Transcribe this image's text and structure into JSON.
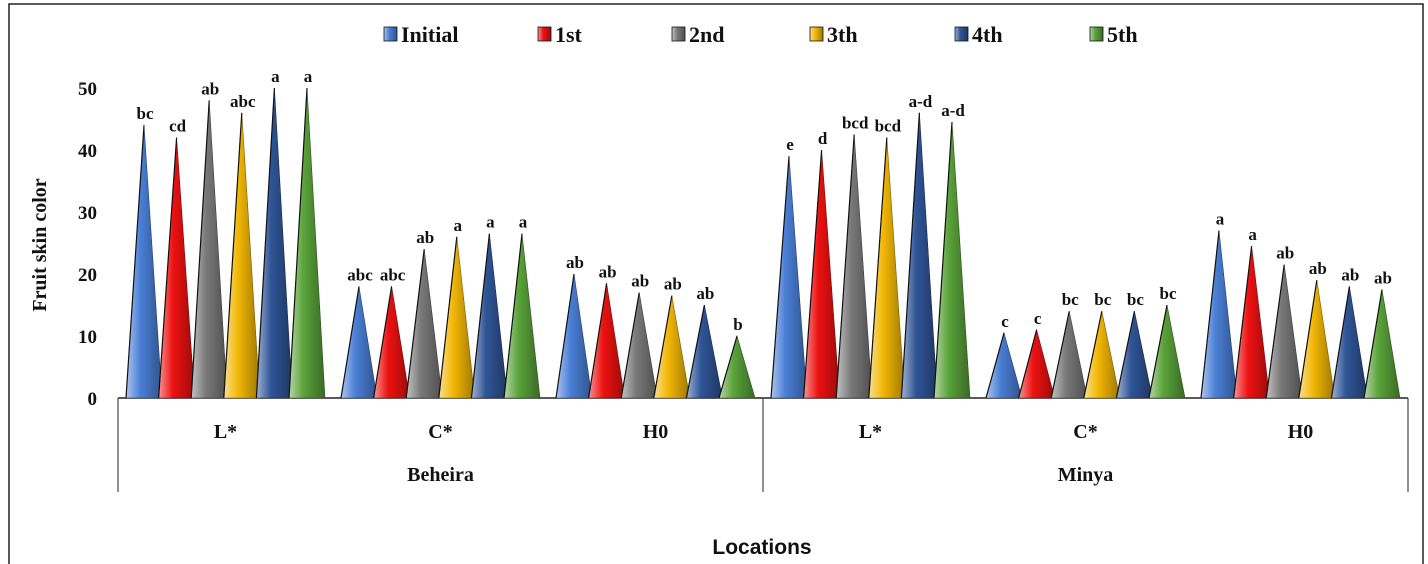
{
  "chart_data": {
    "type": "bar",
    "marker_shape": "cone",
    "ylabel": "Fruit skin color",
    "xlabel": "Locations",
    "ylim": [
      0,
      50
    ],
    "yticks": [
      0,
      10,
      20,
      30,
      40,
      50
    ],
    "legend_position": "top",
    "groups": [
      {
        "name": "Beheira",
        "categories": [
          "L*",
          "C*",
          "H0"
        ]
      },
      {
        "name": "Minya",
        "categories": [
          "L*",
          "C*",
          "H0"
        ]
      }
    ],
    "series": [
      {
        "name": "Initial",
        "color": "#4a7fd6",
        "values": [
          44,
          18,
          20,
          39,
          10.5,
          27
        ],
        "labels": [
          "bc",
          "abc",
          "ab",
          "e",
          "c",
          "a"
        ]
      },
      {
        "name": "1st",
        "color": "#ee1111",
        "values": [
          42,
          18,
          18.5,
          40,
          11,
          24.5
        ],
        "labels": [
          "cd",
          "abc",
          "ab",
          "d",
          "c",
          "a"
        ]
      },
      {
        "name": "2nd",
        "color": "#7a7a7a",
        "values": [
          48,
          24,
          17,
          42.5,
          14,
          21.5
        ],
        "labels": [
          "ab",
          "ab",
          "ab",
          "bcd",
          "bc",
          "ab"
        ]
      },
      {
        "name": "3th",
        "color": "#f2b705",
        "values": [
          46,
          26,
          16.5,
          42,
          14,
          19
        ],
        "labels": [
          "abc",
          "a",
          "ab",
          "bcd",
          "bc",
          "ab"
        ]
      },
      {
        "name": "4th",
        "color": "#2f5597",
        "values": [
          50,
          26.5,
          15,
          46,
          14,
          18
        ],
        "labels": [
          "a",
          "a",
          "ab",
          "a-d",
          "bc",
          "ab"
        ]
      },
      {
        "name": "5th",
        "color": "#5aa33a",
        "values": [
          50,
          26.5,
          10,
          44.5,
          15,
          17.5
        ],
        "labels": [
          "a",
          "a",
          "b",
          "a-d",
          "bc",
          "ab"
        ]
      }
    ]
  }
}
